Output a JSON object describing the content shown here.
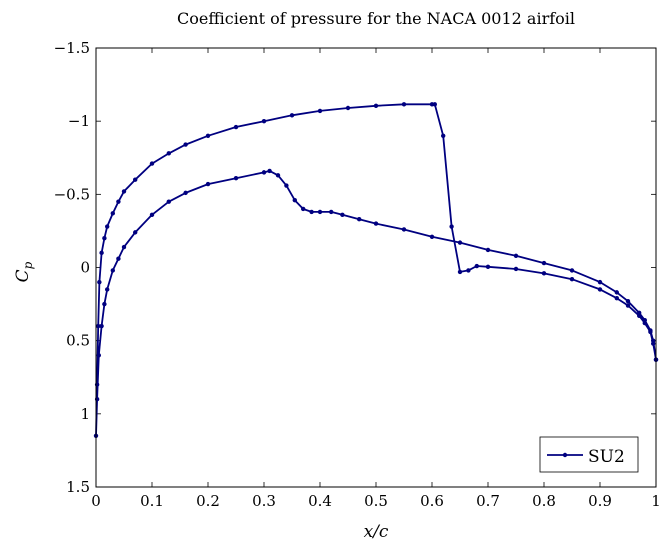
{
  "chart_data": {
    "type": "line",
    "title": "Coefficient of pressure for the NACA 0012 airfoil",
    "xlabel": "x/c",
    "ylabel": "C_p",
    "xlim": [
      0,
      1
    ],
    "ylim": [
      -1.5,
      1.5
    ],
    "y_reversed": true,
    "grid": false,
    "legend_position": "bottom-right",
    "x_ticks": [
      0,
      0.1,
      0.2,
      0.3,
      0.4,
      0.5,
      0.6,
      0.7,
      0.8,
      0.9,
      1
    ],
    "x_tick_labels": [
      "0",
      "0.1",
      "0.2",
      "0.3",
      "0.4",
      "0.5",
      "0.6",
      "0.7",
      "0.8",
      "0.9",
      "1"
    ],
    "y_ticks": [
      -1.5,
      -1,
      -0.5,
      0,
      0.5,
      1,
      1.5
    ],
    "y_tick_labels": [
      "−1.5",
      "−1",
      "−0.5",
      "0",
      "0.5",
      "1",
      "1.5"
    ],
    "series": [
      {
        "name": "SU2",
        "color": "#000080",
        "marker": "circle",
        "x": [
          1,
          0.995,
          0.99,
          0.98,
          0.97,
          0.95,
          0.93,
          0.9,
          0.85,
          0.8,
          0.75,
          0.7,
          0.65,
          0.6,
          0.55,
          0.5,
          0.47,
          0.44,
          0.42,
          0.4,
          0.385,
          0.37,
          0.355,
          0.34,
          0.325,
          0.31,
          0.3,
          0.25,
          0.2,
          0.16,
          0.13,
          0.1,
          0.07,
          0.05,
          0.04,
          0.03,
          0.02,
          0.015,
          0.01,
          0.005,
          0.002,
          0,
          0.002,
          0.004,
          0.006,
          0.01,
          0.015,
          0.02,
          0.03,
          0.04,
          0.05,
          0.07,
          0.1,
          0.13,
          0.16,
          0.2,
          0.25,
          0.3,
          0.35,
          0.4,
          0.45,
          0.5,
          0.55,
          0.6,
          0.605,
          0.62,
          0.635,
          0.65,
          0.665,
          0.68,
          0.7,
          0.75,
          0.8,
          0.85,
          0.9,
          0.93,
          0.95,
          0.97,
          0.98,
          0.99,
          0.995,
          1
        ],
        "y": [
          0.63,
          0.5,
          0.43,
          0.36,
          0.31,
          0.23,
          0.17,
          0.1,
          0.02,
          -0.03,
          -0.08,
          -0.12,
          -0.17,
          -0.21,
          -0.26,
          -0.3,
          -0.33,
          -0.36,
          -0.38,
          -0.38,
          -0.38,
          -0.4,
          -0.46,
          -0.56,
          -0.63,
          -0.66,
          -0.65,
          -0.61,
          -0.57,
          -0.51,
          -0.45,
          -0.36,
          -0.24,
          -0.14,
          -0.06,
          0.02,
          0.15,
          0.25,
          0.4,
          0.6,
          0.9,
          1.15,
          0.8,
          0.4,
          0.1,
          -0.1,
          -0.2,
          -0.28,
          -0.37,
          -0.45,
          -0.52,
          -0.6,
          -0.71,
          -0.78,
          -0.84,
          -0.9,
          -0.96,
          -1.0,
          -1.04,
          -1.07,
          -1.09,
          -1.105,
          -1.115,
          -1.115,
          -1.115,
          -0.9,
          -0.28,
          0.03,
          0.02,
          -0.01,
          -0.005,
          0.01,
          0.04,
          0.08,
          0.15,
          0.21,
          0.26,
          0.33,
          0.38,
          0.44,
          0.52,
          0.63
        ]
      }
    ]
  }
}
